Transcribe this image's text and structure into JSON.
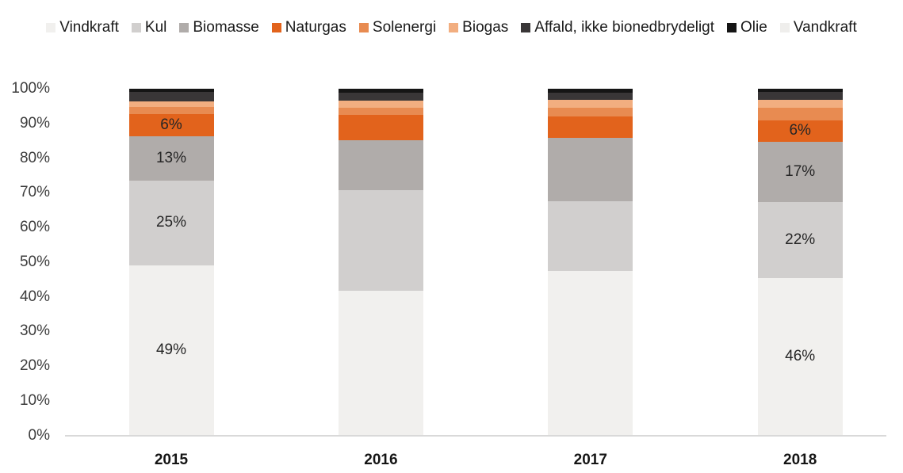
{
  "chart_data": {
    "type": "bar",
    "variant": "stacked-100-percent",
    "title": "",
    "xlabel": "",
    "ylabel": "",
    "unit": "%",
    "categories": [
      "2015",
      "2016",
      "2017",
      "2018"
    ],
    "series": [
      {
        "name": "Vindkraft",
        "color": "#f1f0ee",
        "values": [
          49.0,
          41.7,
          47.5,
          45.5
        ],
        "labels": [
          "49%",
          null,
          null,
          "46%"
        ]
      },
      {
        "name": "Kul",
        "color": "#d1cfce",
        "values": [
          24.6,
          29.1,
          20.1,
          21.8
        ],
        "labels": [
          "25%",
          null,
          null,
          "22%"
        ]
      },
      {
        "name": "Biomasse",
        "color": "#b0acaa",
        "values": [
          12.8,
          14.3,
          18.3,
          17.5
        ],
        "labels": [
          "13%",
          null,
          null,
          "17%"
        ]
      },
      {
        "name": "Naturgas",
        "color": "#e2631c",
        "values": [
          6.4,
          7.4,
          6.1,
          6.2
        ],
        "labels": [
          "6%",
          null,
          null,
          "6%"
        ]
      },
      {
        "name": "Solenergi",
        "color": "#e88b51",
        "values": [
          1.9,
          2.1,
          2.6,
          3.5
        ],
        "labels": [
          null,
          null,
          null,
          null
        ]
      },
      {
        "name": "Biogas",
        "color": "#f2ae80",
        "values": [
          1.7,
          2.0,
          2.2,
          2.3
        ],
        "labels": [
          null,
          null,
          null,
          null
        ]
      },
      {
        "name": "Affald, ikke bionedbrydeligt",
        "color": "#393637",
        "values": [
          2.7,
          2.3,
          2.2,
          2.3
        ],
        "labels": [
          null,
          null,
          null,
          null
        ]
      },
      {
        "name": "Olie",
        "color": "#151515",
        "values": [
          0.9,
          1.1,
          1.0,
          0.9
        ],
        "labels": [
          null,
          null,
          null,
          null
        ]
      },
      {
        "name": "Vandkraft",
        "color": "#efeeec",
        "values": [
          0.0,
          0.0,
          0.0,
          0.0
        ],
        "labels": [
          null,
          null,
          null,
          null
        ]
      }
    ],
    "y_axis": {
      "min": 0,
      "max": 100,
      "step": 10,
      "tick_labels": [
        "0%",
        "10%",
        "20%",
        "30%",
        "40%",
        "50%",
        "60%",
        "70%",
        "80%",
        "90%",
        "100%"
      ]
    },
    "legend_position": "top",
    "gridlines": false
  }
}
